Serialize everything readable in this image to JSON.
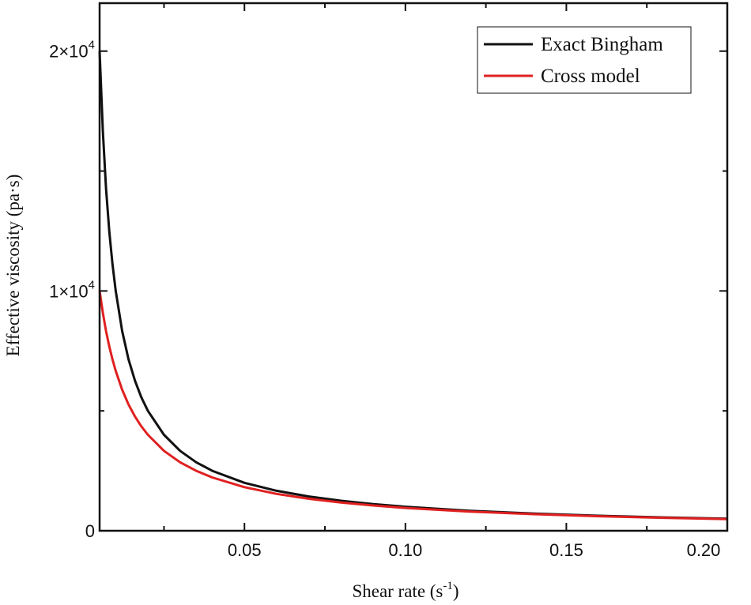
{
  "chart_data": {
    "type": "line",
    "title": "",
    "xlabel": "Shear rate (s",
    "xlabel_sup": "-1",
    "xlabel_end": ")",
    "ylabel": "Effective viscosity (pa·s)",
    "xlim": [
      0.005,
      0.2
    ],
    "ylim": [
      0,
      22000
    ],
    "x_ticks": [
      {
        "value": 0.05,
        "label": "0.05"
      },
      {
        "value": 0.1,
        "label": "0.10"
      },
      {
        "value": 0.15,
        "label": "0.15"
      },
      {
        "value": 0.2,
        "label": "0.20"
      }
    ],
    "x_minor_ticks": [
      0.025,
      0.075,
      0.125,
      0.175
    ],
    "y_ticks": [
      {
        "value": 0,
        "label": "0",
        "exp": ""
      },
      {
        "value": 10000,
        "label": "1×10",
        "exp": "4"
      },
      {
        "value": 20000,
        "label": "2×10",
        "exp": "4"
      }
    ],
    "y_minor_ticks": [
      5000,
      15000
    ],
    "grid": false,
    "legend_position": "top-right",
    "series": [
      {
        "name": "Exact Bingham",
        "color": "#111111",
        "x": [
          0.005,
          0.006,
          0.007,
          0.008,
          0.009,
          0.01,
          0.012,
          0.014,
          0.016,
          0.018,
          0.02,
          0.025,
          0.03,
          0.035,
          0.04,
          0.05,
          0.06,
          0.07,
          0.08,
          0.09,
          0.1,
          0.12,
          0.14,
          0.16,
          0.18,
          0.2
        ],
        "y": [
          20000,
          16667,
          14286,
          12500,
          11111,
          10000,
          8333,
          7143,
          6250,
          5556,
          5000,
          4000,
          3333,
          2857,
          2500,
          2000,
          1667,
          1429,
          1250,
          1111,
          1000,
          833,
          714,
          625,
          556,
          500
        ]
      },
      {
        "name": "Cross model",
        "color": "#e02020",
        "x": [
          0.005,
          0.006,
          0.007,
          0.008,
          0.009,
          0.01,
          0.012,
          0.014,
          0.016,
          0.018,
          0.02,
          0.025,
          0.03,
          0.035,
          0.04,
          0.05,
          0.06,
          0.07,
          0.08,
          0.09,
          0.1,
          0.12,
          0.14,
          0.16,
          0.18,
          0.2
        ],
        "y": [
          10000,
          9091,
          8333,
          7692,
          7143,
          6667,
          5882,
          5263,
          4762,
          4348,
          4000,
          3333,
          2857,
          2500,
          2222,
          1818,
          1538,
          1333,
          1176,
          1053,
          952,
          800,
          690,
          606,
          541,
          488
        ]
      }
    ]
  }
}
